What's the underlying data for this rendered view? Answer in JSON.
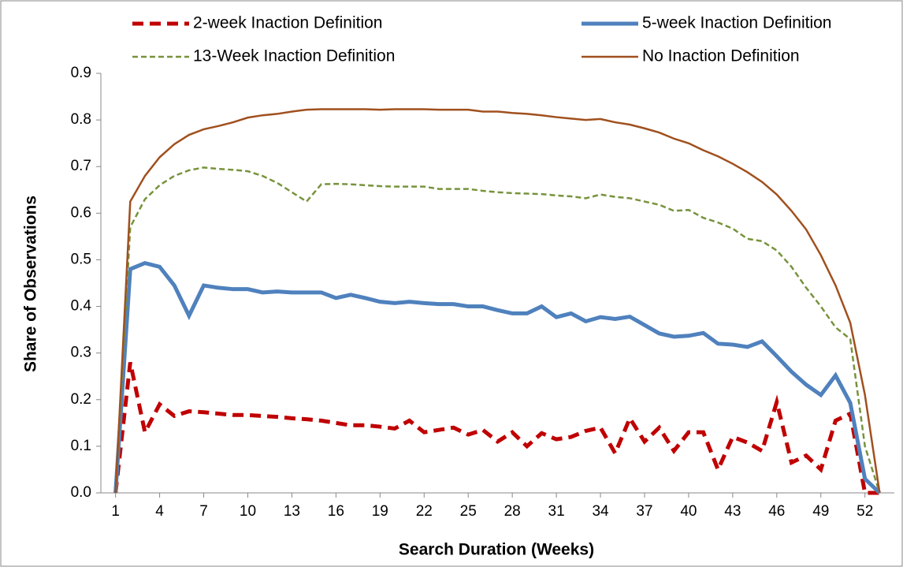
{
  "chart_data": {
    "type": "line",
    "xlabel": "Search Duration (Weeks)",
    "ylabel": "Share of Observations",
    "x": [
      1,
      2,
      3,
      4,
      5,
      6,
      7,
      8,
      9,
      10,
      11,
      12,
      13,
      14,
      15,
      16,
      17,
      18,
      19,
      20,
      21,
      22,
      23,
      24,
      25,
      26,
      27,
      28,
      29,
      30,
      31,
      32,
      33,
      34,
      35,
      36,
      37,
      38,
      39,
      40,
      41,
      42,
      43,
      44,
      45,
      46,
      47,
      48,
      49,
      50,
      51,
      52,
      53
    ],
    "xlim": [
      0,
      54
    ],
    "xticks": [
      1,
      4,
      7,
      10,
      13,
      16,
      19,
      22,
      25,
      28,
      31,
      34,
      37,
      40,
      43,
      46,
      49,
      52
    ],
    "ylim": [
      0,
      0.9
    ],
    "yticks": [
      {
        "value": 0,
        "label": "0.0"
      },
      0.1,
      0.2,
      0.3,
      0.4,
      0.5,
      0.6,
      0.7,
      0.8,
      0.9
    ],
    "series": [
      {
        "name": "2-week Inaction Definition",
        "color": "#c00000",
        "line_style": "dashed",
        "values": [
          0,
          0.28,
          0.13,
          0.19,
          0.165,
          0.175,
          0.173,
          0.17,
          0.167,
          0.167,
          0.165,
          0.163,
          0.16,
          0.158,
          0.155,
          0.15,
          0.145,
          0.145,
          0.142,
          0.138,
          0.155,
          0.13,
          0.135,
          0.14,
          0.125,
          0.135,
          0.11,
          0.13,
          0.1,
          0.128,
          0.115,
          0.12,
          0.133,
          0.14,
          0.085,
          0.16,
          0.11,
          0.14,
          0.09,
          0.13,
          0.13,
          0.05,
          0.12,
          0.108,
          0.09,
          0.195,
          0.065,
          0.08,
          0.05,
          0.155,
          0.17,
          0,
          0
        ]
      },
      {
        "name": "5-week Inaction Definition",
        "color": "#4f81bd",
        "line_style": "solid-thick",
        "values": [
          0,
          0.48,
          0.493,
          0.485,
          0.445,
          0.38,
          0.445,
          0.44,
          0.437,
          0.437,
          0.43,
          0.432,
          0.43,
          0.43,
          0.43,
          0.418,
          0.425,
          0.418,
          0.41,
          0.407,
          0.41,
          0.407,
          0.405,
          0.405,
          0.4,
          0.4,
          0.392,
          0.385,
          0.385,
          0.4,
          0.377,
          0.385,
          0.368,
          0.377,
          0.373,
          0.378,
          0.36,
          0.342,
          0.335,
          0.337,
          0.343,
          0.32,
          0.318,
          0.313,
          0.325,
          0.293,
          0.26,
          0.232,
          0.21,
          0.252,
          0.193,
          0.03,
          0
        ]
      },
      {
        "name": "13-Week Inaction Definition",
        "color": "#77933c",
        "line_style": "dashed-thin",
        "values": [
          0,
          0.57,
          0.63,
          0.66,
          0.68,
          0.692,
          0.698,
          0.695,
          0.693,
          0.69,
          0.68,
          0.665,
          0.645,
          0.625,
          0.662,
          0.663,
          0.662,
          0.66,
          0.658,
          0.657,
          0.657,
          0.657,
          0.652,
          0.652,
          0.652,
          0.648,
          0.645,
          0.643,
          0.642,
          0.641,
          0.638,
          0.636,
          0.632,
          0.64,
          0.635,
          0.632,
          0.625,
          0.618,
          0.605,
          0.607,
          0.59,
          0.58,
          0.567,
          0.545,
          0.54,
          0.52,
          0.485,
          0.44,
          0.4,
          0.355,
          0.33,
          0.1,
          0
        ]
      },
      {
        "name": "No Inaction Definition",
        "color": "#a0501e",
        "line_style": "solid",
        "values": [
          0,
          0.625,
          0.68,
          0.72,
          0.748,
          0.768,
          0.78,
          0.787,
          0.795,
          0.805,
          0.81,
          0.813,
          0.818,
          0.822,
          0.823,
          0.823,
          0.823,
          0.823,
          0.822,
          0.823,
          0.823,
          0.823,
          0.822,
          0.822,
          0.822,
          0.818,
          0.818,
          0.815,
          0.813,
          0.81,
          0.806,
          0.803,
          0.8,
          0.802,
          0.795,
          0.79,
          0.782,
          0.773,
          0.76,
          0.75,
          0.735,
          0.722,
          0.706,
          0.688,
          0.667,
          0.64,
          0.605,
          0.565,
          0.51,
          0.445,
          0.365,
          0.21,
          0
        ]
      }
    ]
  }
}
